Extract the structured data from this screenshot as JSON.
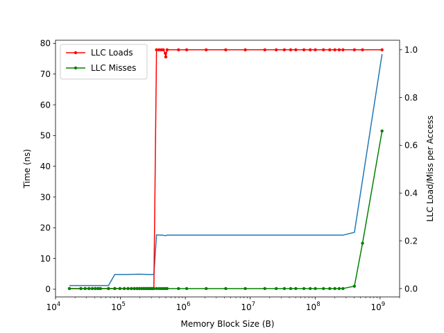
{
  "chart_data": {
    "type": "line",
    "xlabel": "Memory Block Size (B)",
    "ylabel": "Time (ns)",
    "y2label": "LLC Load/Miss per Access",
    "x_scale": "log",
    "xlim": [
      10000,
      2000000000
    ],
    "ylim": [
      -2.5,
      81
    ],
    "y2lim": [
      -0.035,
      1.04
    ],
    "x_ticks": [
      {
        "value": 10000,
        "base": "10",
        "exp": "4"
      },
      {
        "value": 100000,
        "base": "10",
        "exp": "5"
      },
      {
        "value": 1000000,
        "base": "10",
        "exp": "6"
      },
      {
        "value": 10000000,
        "base": "10",
        "exp": "7"
      },
      {
        "value": 100000000,
        "base": "10",
        "exp": "8"
      },
      {
        "value": 1000000000,
        "base": "10",
        "exp": "9"
      }
    ],
    "y_ticks": [
      "0",
      "10",
      "20",
      "30",
      "40",
      "50",
      "60",
      "70",
      "80"
    ],
    "y2_ticks": [
      "0.0",
      "0.2",
      "0.4",
      "0.6",
      "0.8",
      "1.0"
    ],
    "legend": {
      "position": "top-left"
    },
    "series": [
      {
        "name": "",
        "axis": "left",
        "color": "#1f77b4",
        "marker": false,
        "points": [
          [
            16384,
            1.2
          ],
          [
            24576,
            1.2
          ],
          [
            32768,
            1.2
          ],
          [
            49152,
            1.2
          ],
          [
            65536,
            1.2
          ],
          [
            81920,
            4.8
          ],
          [
            98304,
            4.8
          ],
          [
            131072,
            4.8
          ],
          [
            196608,
            4.9
          ],
          [
            262144,
            4.8
          ],
          [
            327680,
            4.8
          ],
          [
            360000,
            17.7
          ],
          [
            393216,
            17.6
          ],
          [
            450000,
            17.6
          ],
          [
            491520,
            17.4
          ],
          [
            524288,
            17.6
          ],
          [
            1048576,
            17.6
          ],
          [
            4194304,
            17.6
          ],
          [
            16777216,
            17.6
          ],
          [
            67108864,
            17.6
          ],
          [
            134217728,
            17.6
          ],
          [
            268435456,
            17.6
          ],
          [
            402653184,
            18.5
          ],
          [
            1073741824,
            76.5
          ]
        ]
      },
      {
        "name": "LLC Loads",
        "axis": "right",
        "color": "#ff0000",
        "marker": true,
        "points": [
          [
            16384,
            0.0
          ],
          [
            24576,
            0.0
          ],
          [
            28672,
            0.0
          ],
          [
            32768,
            0.0
          ],
          [
            36864,
            0.0
          ],
          [
            40960,
            0.0
          ],
          [
            45056,
            0.0
          ],
          [
            49152,
            0.0
          ],
          [
            65536,
            0.0
          ],
          [
            81920,
            0.0
          ],
          [
            98304,
            0.0
          ],
          [
            114688,
            0.0
          ],
          [
            131072,
            0.0
          ],
          [
            147456,
            0.0
          ],
          [
            163840,
            0.0
          ],
          [
            180224,
            0.0
          ],
          [
            196608,
            0.0
          ],
          [
            212992,
            0.0
          ],
          [
            229376,
            0.0
          ],
          [
            245760,
            0.0
          ],
          [
            262144,
            0.0
          ],
          [
            278528,
            0.0
          ],
          [
            294912,
            0.0
          ],
          [
            311296,
            0.0
          ],
          [
            327680,
            0.0
          ],
          [
            360000,
            1.0
          ],
          [
            393216,
            1.0
          ],
          [
            425984,
            1.0
          ],
          [
            458752,
            1.0
          ],
          [
            491520,
            0.985
          ],
          [
            500000,
            0.97
          ],
          [
            524288,
            1.0
          ],
          [
            786432,
            1.0
          ],
          [
            1048576,
            1.0
          ],
          [
            2097152,
            1.0
          ],
          [
            4194304,
            1.0
          ],
          [
            8388608,
            1.0
          ],
          [
            16777216,
            1.0
          ],
          [
            25165824,
            1.0
          ],
          [
            33554432,
            1.0
          ],
          [
            41943040,
            1.0
          ],
          [
            50331648,
            1.0
          ],
          [
            67108864,
            1.0
          ],
          [
            83886080,
            1.0
          ],
          [
            100663296,
            1.0
          ],
          [
            134217728,
            1.0
          ],
          [
            167772160,
            1.0
          ],
          [
            201326592,
            1.0
          ],
          [
            234881024,
            1.0
          ],
          [
            268435456,
            1.0
          ],
          [
            402653184,
            1.0
          ],
          [
            536870912,
            1.0
          ],
          [
            1073741824,
            1.0
          ]
        ]
      },
      {
        "name": "LLC Misses",
        "axis": "right",
        "color": "#008000",
        "marker": true,
        "points": [
          [
            16384,
            0.0
          ],
          [
            24576,
            0.0
          ],
          [
            28672,
            0.0
          ],
          [
            32768,
            0.0
          ],
          [
            36864,
            0.0
          ],
          [
            40960,
            0.0
          ],
          [
            45056,
            0.0
          ],
          [
            49152,
            0.0
          ],
          [
            65536,
            0.0
          ],
          [
            81920,
            0.0
          ],
          [
            98304,
            0.0
          ],
          [
            114688,
            0.0
          ],
          [
            131072,
            0.0
          ],
          [
            147456,
            0.0
          ],
          [
            163840,
            0.0
          ],
          [
            180224,
            0.0
          ],
          [
            196608,
            0.0
          ],
          [
            212992,
            0.0
          ],
          [
            229376,
            0.0
          ],
          [
            245760,
            0.0
          ],
          [
            262144,
            0.0
          ],
          [
            278528,
            0.0
          ],
          [
            294912,
            0.0
          ],
          [
            311296,
            0.0
          ],
          [
            327680,
            0.0
          ],
          [
            360000,
            0.0
          ],
          [
            393216,
            0.0
          ],
          [
            425984,
            0.0
          ],
          [
            458752,
            0.0
          ],
          [
            491520,
            0.0
          ],
          [
            524288,
            0.0
          ],
          [
            786432,
            0.0
          ],
          [
            1048576,
            0.0
          ],
          [
            2097152,
            0.0
          ],
          [
            4194304,
            0.0
          ],
          [
            8388608,
            0.0
          ],
          [
            16777216,
            0.0
          ],
          [
            25165824,
            0.0
          ],
          [
            33554432,
            0.0
          ],
          [
            41943040,
            0.0
          ],
          [
            50331648,
            0.0
          ],
          [
            67108864,
            0.0
          ],
          [
            83886080,
            0.0
          ],
          [
            100663296,
            0.0
          ],
          [
            134217728,
            0.0
          ],
          [
            167772160,
            0.0
          ],
          [
            201326592,
            0.0
          ],
          [
            234881024,
            0.0
          ],
          [
            268435456,
            0.0
          ],
          [
            402653184,
            0.01
          ],
          [
            536870912,
            0.19
          ],
          [
            1073741824,
            0.66
          ]
        ]
      }
    ]
  }
}
